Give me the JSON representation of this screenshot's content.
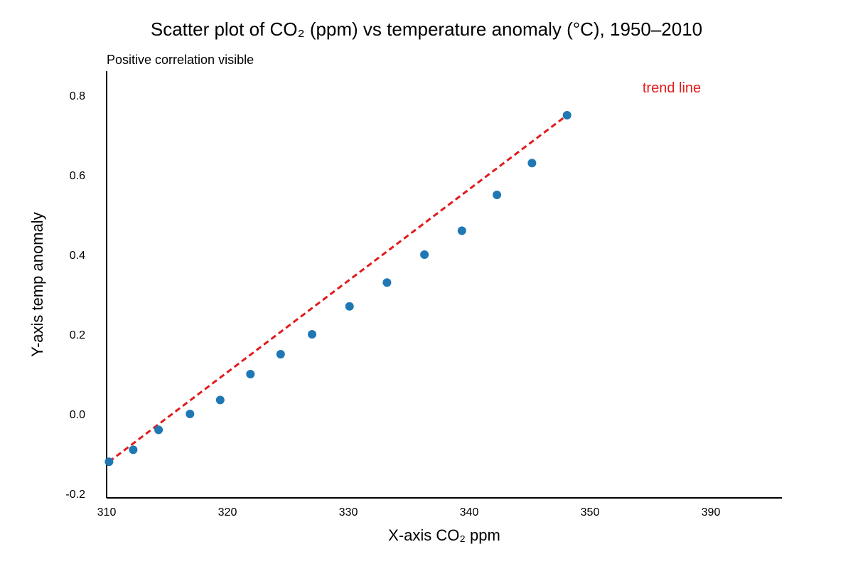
{
  "chart_data": {
    "type": "scatter",
    "title": "Scatter plot of CO₂ (ppm) vs temperature anomaly (°C), 1950–2010",
    "subtitle": "Positive correlation visible",
    "xlabel": "X-axis CO₂ ppm",
    "ylabel": "Y-axis temp anomaly",
    "x_ticks": [
      "310",
      "320",
      "330",
      "340",
      "350",
      "390"
    ],
    "y_ticks": [
      {
        "label": "0.8",
        "value": 0.8
      },
      {
        "label": "0.6",
        "value": 0.6
      },
      {
        "label": "0.4",
        "value": 0.4
      },
      {
        "label": "0.2",
        "value": 0.2
      },
      {
        "label": "0.0",
        "value": 0.0
      },
      {
        "label": "-0.2",
        "value": -0.2
      }
    ],
    "points": [
      {
        "x": "310.2",
        "y": -0.12
      },
      {
        "x": "312.2",
        "y": -0.09
      },
      {
        "x": "314.3",
        "y": -0.04
      },
      {
        "x": "316.9",
        "y": 0.0
      },
      {
        "x": "319.4",
        "y": 0.035
      },
      {
        "x": "321.9",
        "y": 0.1
      },
      {
        "x": "324.4",
        "y": 0.15
      },
      {
        "x": "327.0",
        "y": 0.2
      },
      {
        "x": "330.1",
        "y": 0.27
      },
      {
        "x": "333.2",
        "y": 0.33
      },
      {
        "x": "336.3",
        "y": 0.4
      },
      {
        "x": "339.4",
        "y": 0.46
      },
      {
        "x": "342.3",
        "y": 0.55
      },
      {
        "x": "345.2",
        "y": 0.63
      },
      {
        "x": "348.1",
        "y": 0.75
      }
    ],
    "trend_line": {
      "label": "trend line",
      "start": {
        "x": "310.2",
        "y": -0.12
      },
      "end": {
        "x": "348.1",
        "y": 0.75
      }
    },
    "grid": false,
    "legend": "none",
    "colors": {
      "points": "#1f77b4",
      "trend": "#e31a1c",
      "axis": "#000000"
    }
  }
}
